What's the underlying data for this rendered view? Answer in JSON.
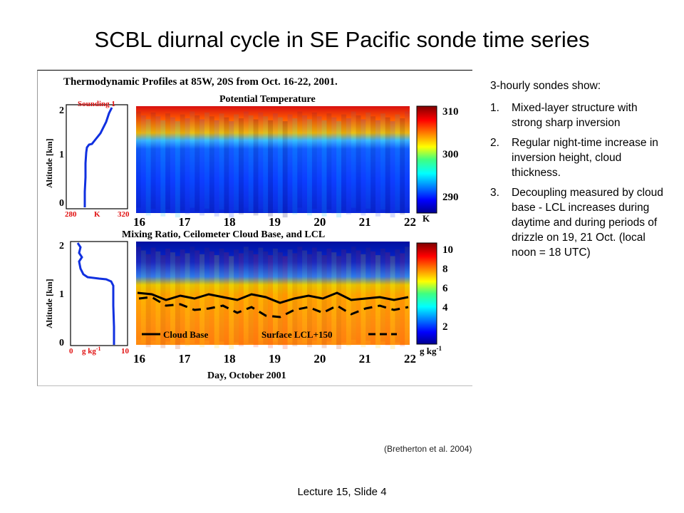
{
  "slide": {
    "title": "SCBL diurnal cycle in SE Pacific sonde time series",
    "footer": "Lecture 15, Slide 4"
  },
  "figure": {
    "main_title": "Thermodynamic Profiles at 85W, 20S from Oct. 16-22, 2001.",
    "citation": "(Bretherton et al. 2004)",
    "top_panel": {
      "title": "Potential Temperature",
      "sounding_label": "Sounding 1",
      "profile_axis": {
        "min": "280",
        "unit": "K",
        "max": "320"
      },
      "altitude_label": "Altitude [km]",
      "altitude_ticks": [
        "2",
        "1",
        "0"
      ],
      "colorbar_ticks": [
        "310",
        "300",
        "290"
      ],
      "colorbar_unit": "K",
      "day_ticks": [
        "16",
        "17",
        "18",
        "19",
        "20",
        "21",
        "22"
      ]
    },
    "bottom_panel": {
      "title": "Mixing Ratio, Ceilometer Cloud Base, and LCL",
      "profile_axis": {
        "min": "0",
        "unit": "g kg",
        "sup": "-1",
        "max": "10"
      },
      "altitude_label": "Altitude [km]",
      "altitude_ticks": [
        "2",
        "1",
        "0"
      ],
      "colorbar_ticks": [
        "10",
        "8",
        "6",
        "4",
        "2"
      ],
      "colorbar_unit": "g kg",
      "colorbar_unit_sup": "-1",
      "legend_cloud_base": "Cloud Base",
      "legend_lcl": "Surface LCL+150",
      "day_ticks": [
        "16",
        "17",
        "18",
        "19",
        "20",
        "21",
        "22"
      ]
    },
    "xlabel": "Day, October 2001",
    "colors": {
      "profile_line": "#1030e0",
      "axis_red": "#e01010"
    }
  },
  "bullets": {
    "intro": "3-hourly sondes show:",
    "items": [
      {
        "num": "1.",
        "text": "Mixed-layer structure with strong sharp inversion"
      },
      {
        "num": "2.",
        "text": "Regular night-time increase in inversion height, cloud thickness."
      },
      {
        "num": "3.",
        "text": "Decoupling measured by cloud base - LCL increases during daytime and during periods of drizzle on 19, 21 Oct. (local noon = 18 UTC)"
      }
    ]
  }
}
